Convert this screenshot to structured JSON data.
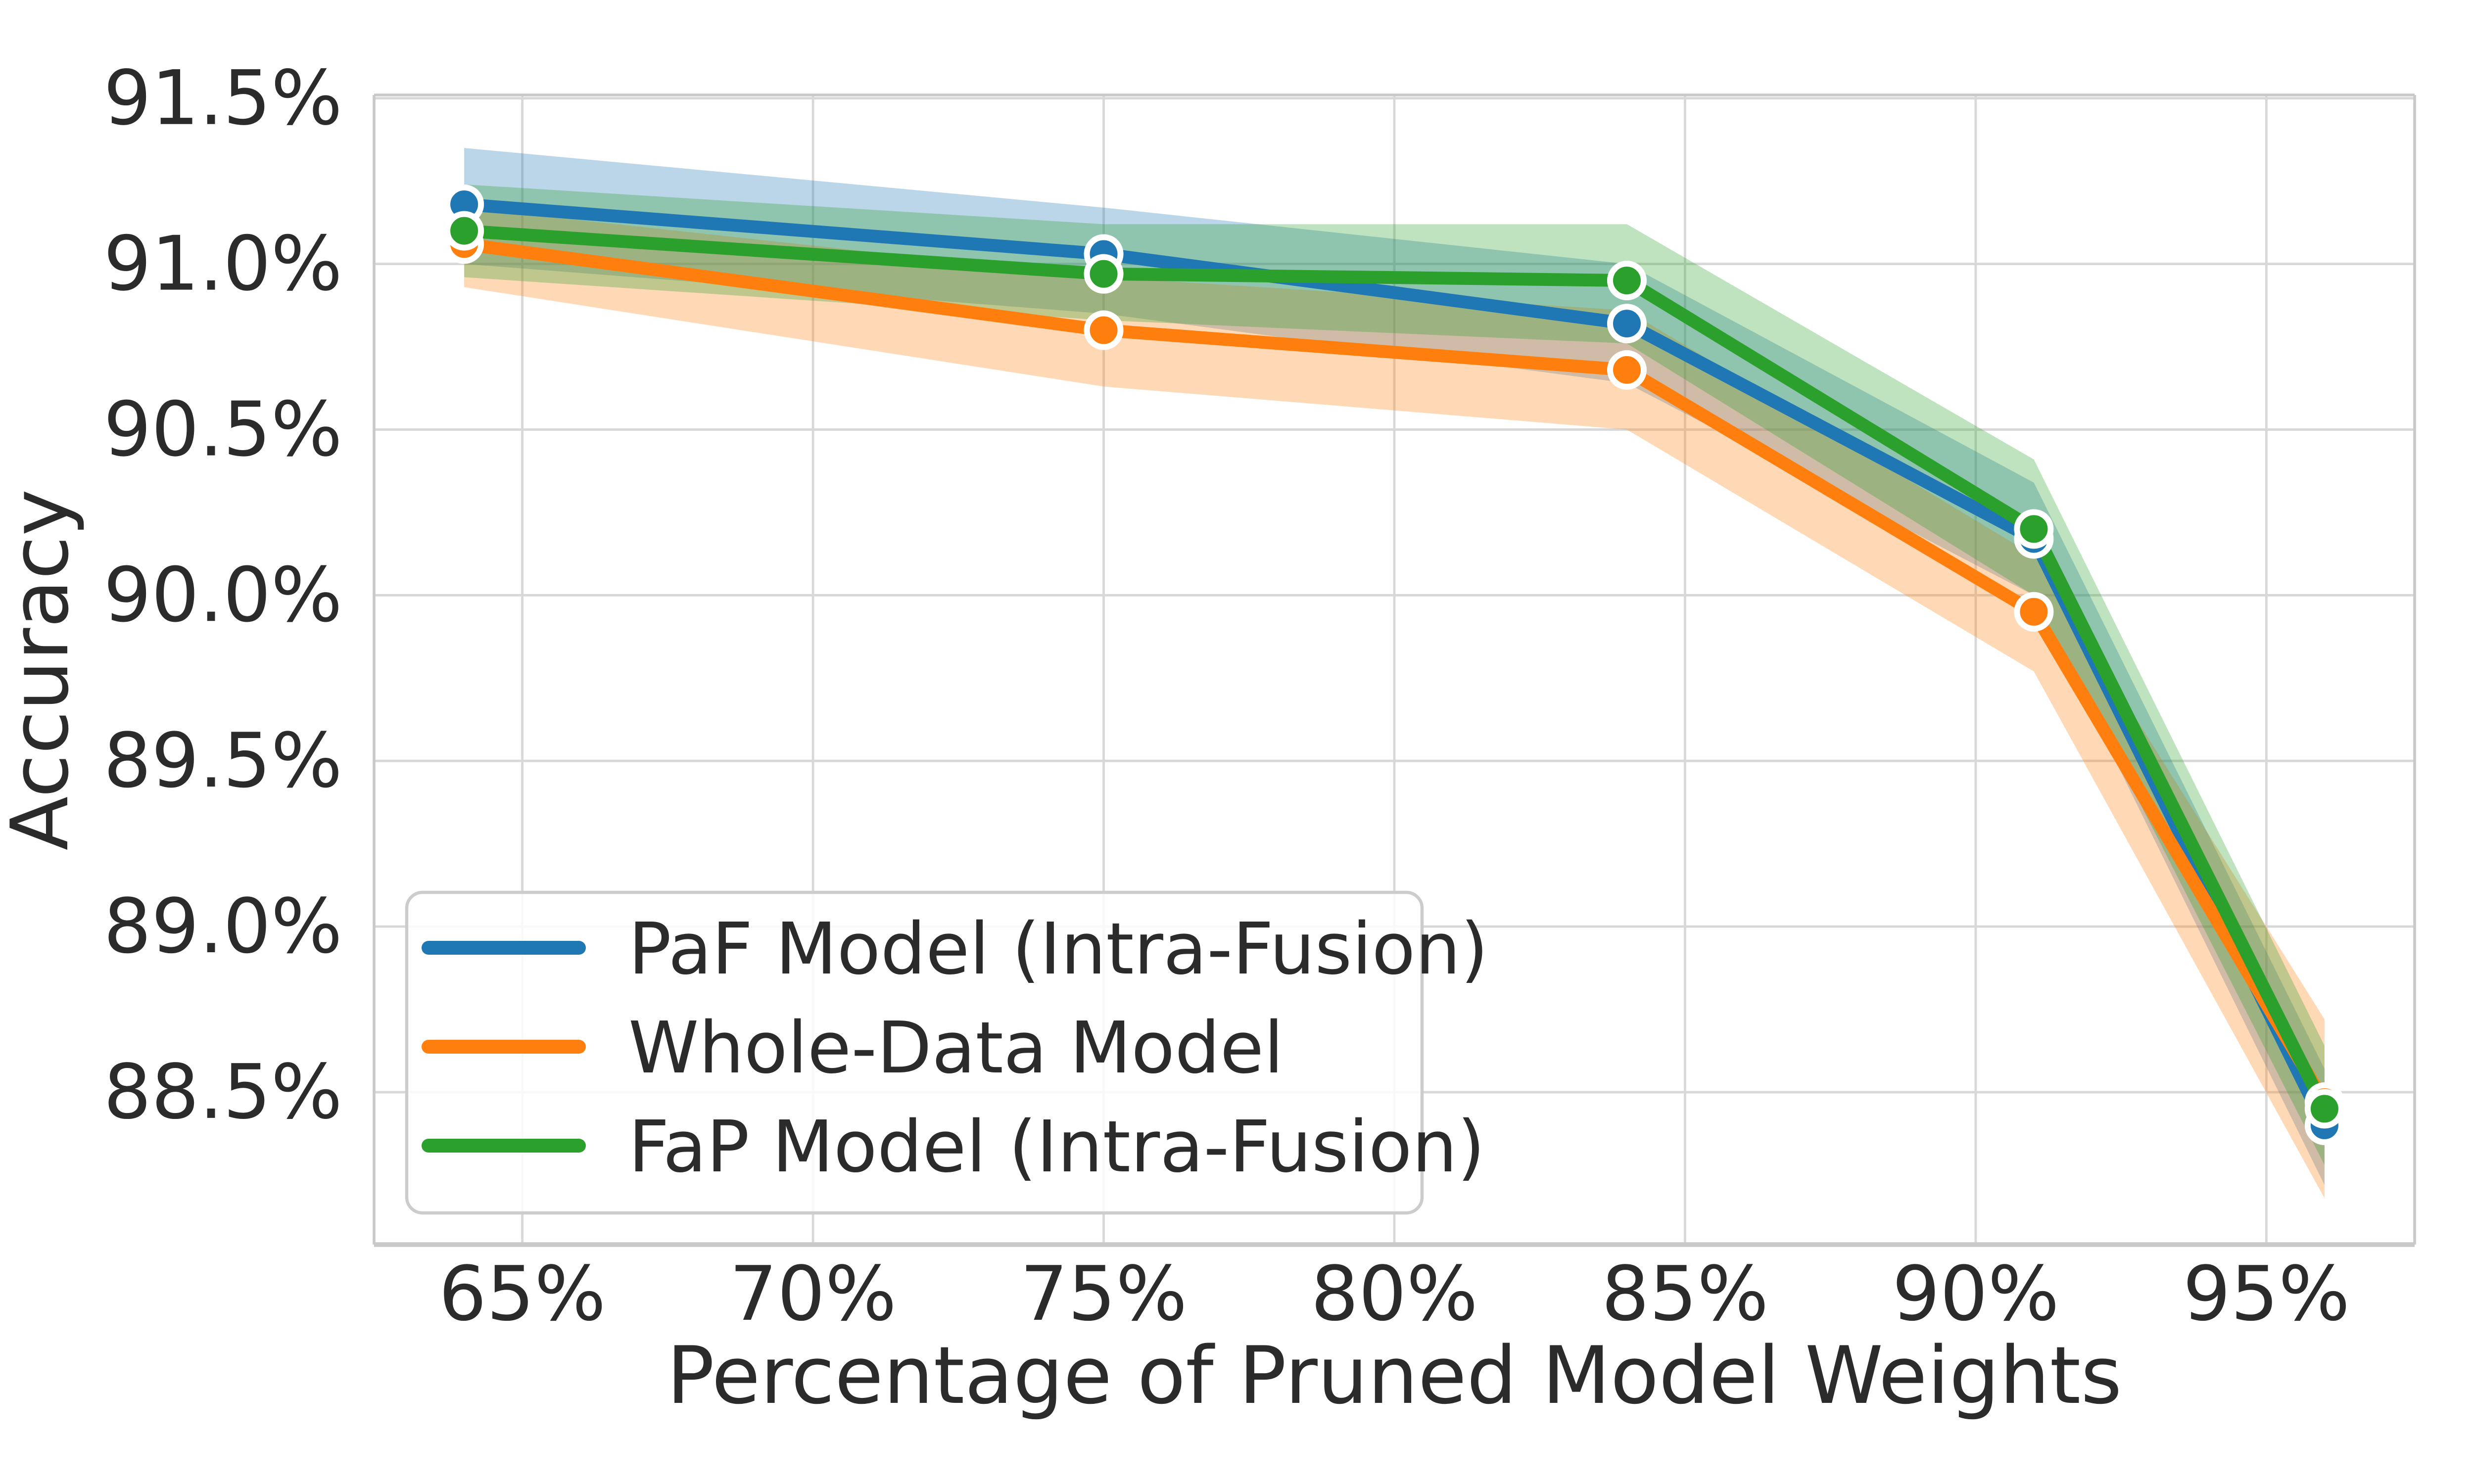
{
  "figure": {
    "background": "#ffffff"
  },
  "chart_data": {
    "type": "line",
    "title": "",
    "xlabel": "Percentage of Pruned Model Weights",
    "ylabel": "Accuracy",
    "xlim": [
      62.45,
      97.55
    ],
    "ylim": [
      88.04,
      91.51
    ],
    "grid": true,
    "legend_position": "lower-left",
    "x": [
      64,
      75,
      84,
      91,
      96
    ],
    "xticks": [
      {
        "value": 65,
        "label": "65%"
      },
      {
        "value": 70,
        "label": "70%"
      },
      {
        "value": 75,
        "label": "75%"
      },
      {
        "value": 80,
        "label": "80%"
      },
      {
        "value": 85,
        "label": "85%"
      },
      {
        "value": 90,
        "label": "90%"
      },
      {
        "value": 95,
        "label": "95%"
      }
    ],
    "yticks": [
      {
        "value": 91.5,
        "label": "91.5%"
      },
      {
        "value": 91.0,
        "label": "91.0%"
      },
      {
        "value": 90.5,
        "label": "90.5%"
      },
      {
        "value": 90.0,
        "label": "90.0%"
      },
      {
        "value": 89.5,
        "label": "89.5%"
      },
      {
        "value": 89.0,
        "label": "89.0%"
      },
      {
        "value": 88.5,
        "label": "88.5%"
      }
    ],
    "series": [
      {
        "name": "PaF Model (Intra-Fusion)",
        "slug": "paf-model-intra-fusion",
        "color": "#1f77b4",
        "values": [
          91.18,
          91.03,
          90.82,
          90.17,
          88.4
        ],
        "band_low": [
          91.0,
          90.85,
          90.64,
          90.0,
          88.22
        ],
        "band_high": [
          91.35,
          91.17,
          91.0,
          90.34,
          88.57
        ]
      },
      {
        "name": "Whole-Data Model",
        "slug": "whole-data-model",
        "color": "#ff7f0e",
        "values": [
          91.06,
          90.8,
          90.68,
          89.95,
          88.47
        ],
        "band_low": [
          90.93,
          90.63,
          90.5,
          89.77,
          88.18
        ],
        "band_high": [
          91.17,
          90.96,
          90.86,
          90.12,
          88.72
        ]
      },
      {
        "name": "FaP Model (Intra-Fusion)",
        "slug": "fap-model-intra-fusion",
        "color": "#2ca02c",
        "values": [
          91.1,
          90.97,
          90.95,
          90.2,
          88.45
        ],
        "band_low": [
          90.96,
          90.83,
          90.76,
          90.0,
          88.28
        ],
        "band_high": [
          91.24,
          91.12,
          91.12,
          90.41,
          88.64
        ]
      }
    ],
    "style": {
      "grid_color": "#d8d8d8",
      "spine_color": "#c9c9c9",
      "text_color": "#2b2b2b",
      "band_opacity": 0.3,
      "line_width": 6.5,
      "marker_radius": 8.5,
      "marker_edge_color": "#ffffff",
      "legend_bg": "rgba(255,255,255,0.85)",
      "legend_border": "#cccccc"
    }
  }
}
